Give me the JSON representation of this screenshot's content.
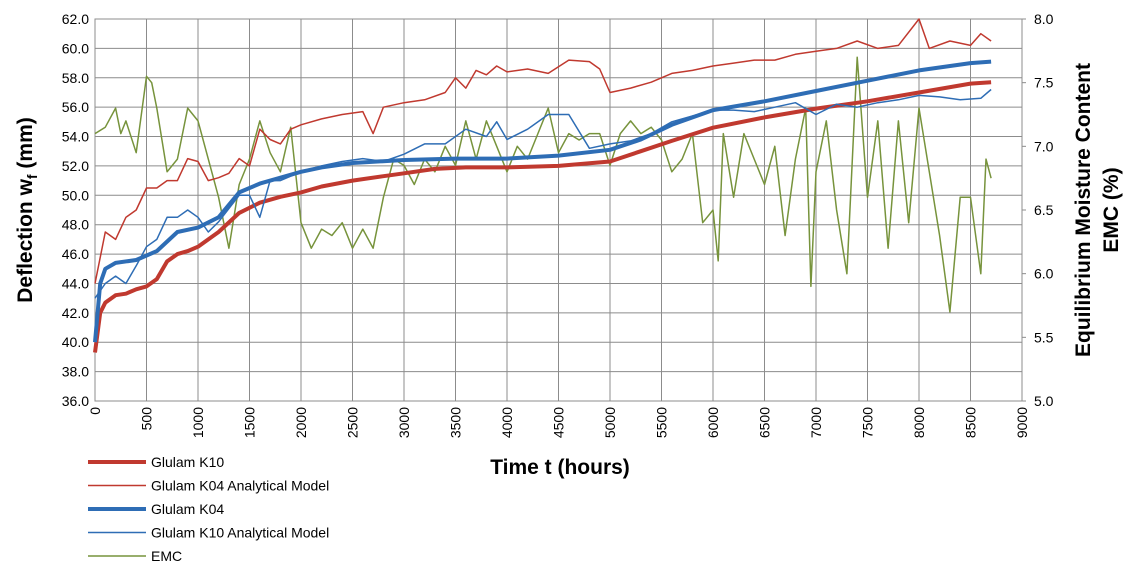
{
  "chart_data": {
    "type": "line",
    "xlabel": "Time t (hours)",
    "ylabel_parts": [
      "Deflection w",
      "f",
      " (mm)"
    ],
    "y2label_lines": [
      "Equilibrium Moisture Content",
      "EMC (%)"
    ],
    "xlim": [
      0,
      9000
    ],
    "xticks": [
      0,
      500,
      1000,
      1500,
      2000,
      2500,
      3000,
      3500,
      4000,
      4500,
      5000,
      5500,
      6000,
      6500,
      7000,
      7500,
      8000,
      8500,
      9000
    ],
    "ylim": [
      36,
      62
    ],
    "yticks": [
      {
        "value": 36,
        "label": "36.0"
      },
      {
        "value": 38,
        "label": "38.0"
      },
      {
        "value": 40,
        "label": "40.0"
      },
      {
        "value": 42,
        "label": "42.0"
      },
      {
        "value": 44,
        "label": "44.0"
      },
      {
        "value": 46,
        "label": "46.0"
      },
      {
        "value": 48,
        "label": "48.0"
      },
      {
        "value": 50,
        "label": "50.0"
      },
      {
        "value": 52,
        "label": "52.0"
      },
      {
        "value": 54,
        "label": "54.0"
      },
      {
        "value": 56,
        "label": "56.0"
      },
      {
        "value": 58,
        "label": "58.0"
      },
      {
        "value": 60,
        "label": "60.0"
      },
      {
        "value": 62,
        "label": "62.0"
      }
    ],
    "y2lim": [
      5,
      8
    ],
    "y2ticks": [
      {
        "value": 5,
        "label": "5.0"
      },
      5.5,
      {
        "value": 6,
        "label": "6.0"
      },
      6.5,
      {
        "value": 7,
        "label": "7.0"
      },
      7.5,
      {
        "value": 8,
        "label": "8.0"
      }
    ],
    "grid": true,
    "legend": "bottom-left",
    "series": [
      {
        "name": "Glulam K10",
        "color": "#c0392f",
        "width": 4,
        "x": [
          0,
          50,
          100,
          200,
          300,
          400,
          500,
          600,
          700,
          800,
          900,
          1000,
          1200,
          1400,
          1600,
          1800,
          2000,
          2200,
          2500,
          2800,
          3000,
          3300,
          3600,
          4000,
          4500,
          5000,
          5300,
          5600,
          6000,
          6500,
          7000,
          7500,
          8000,
          8500,
          8700
        ],
        "values": [
          39.3,
          42,
          42.7,
          43.2,
          43.3,
          43.6,
          43.8,
          44.3,
          45.5,
          46,
          46.2,
          46.5,
          47.5,
          48.8,
          49.5,
          49.9,
          50.2,
          50.6,
          51,
          51.3,
          51.5,
          51.8,
          51.9,
          51.9,
          52,
          52.3,
          53,
          53.7,
          54.6,
          55.3,
          55.9,
          56.4,
          57,
          57.6,
          57.7
        ]
      },
      {
        "name": "Glulam K04 Analytical Model",
        "color": "#c0392f",
        "width": 1.5,
        "x": [
          0,
          100,
          200,
          300,
          400,
          500,
          600,
          700,
          800,
          900,
          1000,
          1100,
          1200,
          1300,
          1400,
          1500,
          1600,
          1700,
          1800,
          1900,
          2000,
          2200,
          2400,
          2600,
          2700,
          2800,
          3000,
          3200,
          3400,
          3500,
          3600,
          3700,
          3800,
          3900,
          4000,
          4200,
          4400,
          4600,
          4800,
          4900,
          5000,
          5200,
          5400,
          5600,
          5800,
          6000,
          6200,
          6400,
          6600,
          6800,
          7000,
          7200,
          7400,
          7600,
          7800,
          8000,
          8100,
          8300,
          8500,
          8600,
          8700
        ],
        "values": [
          44,
          47.5,
          47,
          48.5,
          49,
          50.5,
          50.5,
          51,
          51,
          52.5,
          52.3,
          51,
          51.2,
          51.5,
          52.5,
          52,
          54.5,
          53.8,
          53.5,
          54.5,
          54.8,
          55.2,
          55.5,
          55.7,
          54.2,
          56,
          56.3,
          56.5,
          57,
          58,
          57.3,
          58.5,
          58.2,
          58.8,
          58.4,
          58.6,
          58.3,
          59.2,
          59.1,
          58.6,
          57,
          57.3,
          57.7,
          58.3,
          58.5,
          58.8,
          59,
          59.2,
          59.2,
          59.6,
          59.8,
          60,
          60.5,
          60,
          60.2,
          62,
          60,
          60.5,
          60.2,
          61,
          60.5
        ]
      },
      {
        "name": "Glulam K04",
        "color": "#2e6db5",
        "width": 4,
        "x": [
          0,
          50,
          100,
          200,
          400,
          600,
          800,
          1000,
          1200,
          1400,
          1600,
          1800,
          2000,
          2200,
          2500,
          3000,
          3500,
          4000,
          4500,
          5000,
          5300,
          5600,
          6000,
          6500,
          7000,
          7500,
          8000,
          8500,
          8700
        ],
        "values": [
          40,
          44,
          45,
          45.4,
          45.6,
          46.2,
          47.5,
          47.8,
          48.5,
          50.2,
          50.8,
          51.2,
          51.6,
          51.9,
          52.2,
          52.4,
          52.5,
          52.5,
          52.7,
          53.1,
          53.8,
          54.8,
          55.8,
          56.4,
          57.1,
          57.8,
          58.5,
          59,
          59.1
        ]
      },
      {
        "name": "Glulam K10 Analytical Model",
        "color": "#2e6db5",
        "width": 1.5,
        "x": [
          0,
          100,
          200,
          300,
          400,
          500,
          600,
          700,
          800,
          900,
          1000,
          1100,
          1200,
          1400,
          1500,
          1600,
          1700,
          1800,
          2000,
          2200,
          2400,
          2600,
          2800,
          3000,
          3200,
          3400,
          3600,
          3800,
          3900,
          4000,
          4200,
          4400,
          4600,
          4800,
          5000,
          5200,
          5400,
          5600,
          5800,
          6000,
          6200,
          6400,
          6600,
          6800,
          7000,
          7200,
          7400,
          7600,
          7800,
          8000,
          8200,
          8400,
          8600,
          8700
        ],
        "values": [
          43,
          44,
          44.5,
          44,
          45.2,
          46.5,
          47,
          48.5,
          48.5,
          49,
          48.5,
          47.5,
          48.2,
          50,
          50,
          48.5,
          51,
          51,
          51.6,
          52,
          52.3,
          52.5,
          52.3,
          52.8,
          53.5,
          53.5,
          54.5,
          54,
          55,
          53.8,
          54.5,
          55.5,
          55.5,
          53.2,
          53.5,
          53.7,
          54.2,
          55,
          55.4,
          55.8,
          55.8,
          55.7,
          56,
          56.3,
          55.5,
          56.2,
          56,
          56.3,
          56.5,
          56.8,
          56.7,
          56.5,
          56.6,
          57.2
        ]
      },
      {
        "name": "EMC",
        "color": "#77933c",
        "width": 1.5,
        "axis": "y2",
        "x": [
          0,
          100,
          200,
          250,
          300,
          400,
          500,
          550,
          600,
          700,
          800,
          900,
          1000,
          1100,
          1200,
          1300,
          1400,
          1500,
          1600,
          1700,
          1800,
          1900,
          2000,
          2100,
          2200,
          2300,
          2400,
          2500,
          2600,
          2700,
          2800,
          2900,
          3000,
          3100,
          3200,
          3300,
          3400,
          3500,
          3600,
          3700,
          3800,
          3900,
          4000,
          4100,
          4200,
          4300,
          4400,
          4500,
          4600,
          4700,
          4800,
          4900,
          5000,
          5100,
          5200,
          5300,
          5400,
          5500,
          5600,
          5700,
          5800,
          5900,
          6000,
          6050,
          6100,
          6200,
          6300,
          6400,
          6500,
          6600,
          6700,
          6800,
          6900,
          6950,
          7000,
          7100,
          7200,
          7300,
          7400,
          7500,
          7600,
          7700,
          7800,
          7900,
          8000,
          8100,
          8200,
          8300,
          8400,
          8500,
          8600,
          8650,
          8700
        ],
        "values": [
          7.1,
          7.15,
          7.3,
          7.1,
          7.2,
          6.95,
          7.55,
          7.5,
          7.3,
          6.8,
          6.9,
          7.3,
          7.2,
          6.9,
          6.6,
          6.2,
          6.7,
          6.9,
          7.2,
          6.95,
          6.8,
          7.15,
          6.4,
          6.2,
          6.35,
          6.3,
          6.4,
          6.2,
          6.35,
          6.2,
          6.6,
          6.9,
          6.85,
          6.7,
          6.9,
          6.8,
          7,
          6.85,
          7.2,
          6.9,
          7.2,
          7,
          6.8,
          7,
          6.9,
          7.1,
          7.3,
          6.95,
          7.1,
          7.05,
          7.1,
          7.1,
          6.85,
          7.1,
          7.2,
          7.1,
          7.15,
          7.05,
          6.8,
          6.9,
          7.1,
          6.4,
          6.5,
          6.1,
          7.1,
          6.6,
          7.1,
          6.9,
          6.7,
          7,
          6.3,
          6.9,
          7.3,
          5.9,
          6.8,
          7.2,
          6.5,
          6,
          7.7,
          6.6,
          7.2,
          6.2,
          7.2,
          6.4,
          7.3,
          6.8,
          6.3,
          5.7,
          6.6,
          6.6,
          6,
          6.9,
          6.75
        ]
      }
    ]
  }
}
